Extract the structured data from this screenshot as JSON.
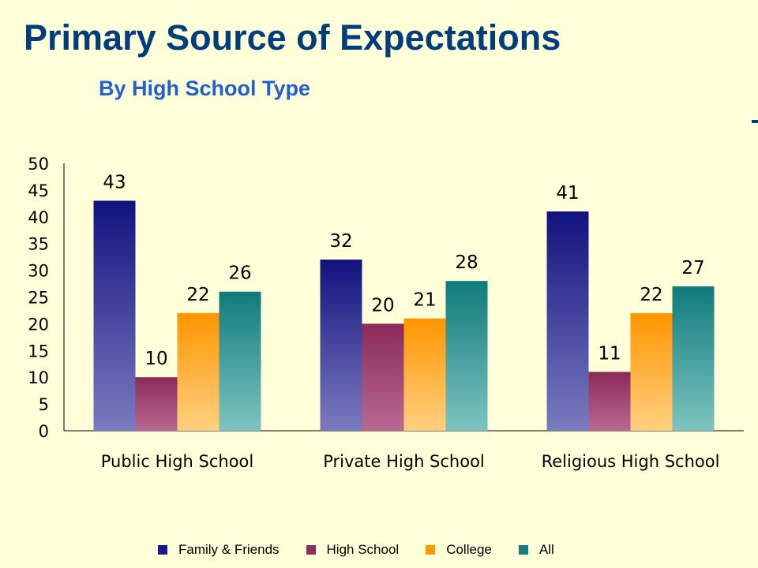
{
  "title": "Primary Source of Expectations",
  "subtitle": "By High School Type",
  "colors": {
    "background": "#ffffd9",
    "title": "#003d7a",
    "subtitle": "#1f5fd0",
    "Family & Friends": "#1a1a8c",
    "High School": "#8e2e5c",
    "College": "#ff9900",
    "All": "#128080"
  },
  "chart_data": {
    "type": "bar",
    "title": "Primary Source of Expectations",
    "subtitle": "By High School Type",
    "categories": [
      "Public High School",
      "Private High School",
      "Religious High School"
    ],
    "series": [
      {
        "name": "Family & Friends",
        "values": [
          43,
          32,
          41
        ]
      },
      {
        "name": "High School",
        "values": [
          10,
          20,
          11
        ]
      },
      {
        "name": "College",
        "values": [
          22,
          21,
          22
        ]
      },
      {
        "name": "All",
        "values": [
          26,
          28,
          27
        ]
      }
    ],
    "yticks": [
      "0",
      "5",
      "10",
      "15",
      "20",
      "25",
      "30",
      "35",
      "40",
      "45",
      "50"
    ],
    "ylim": [
      0,
      50
    ],
    "xlabel": "",
    "ylabel": "",
    "grid": false,
    "legend_position": "bottom"
  },
  "legend": [
    {
      "label": "Family & Friends",
      "color": "#1a1a8c"
    },
    {
      "label": "High School",
      "color": "#8e2e5c"
    },
    {
      "label": "College",
      "color": "#ff9900"
    },
    {
      "label": "All",
      "color": "#128080"
    }
  ]
}
